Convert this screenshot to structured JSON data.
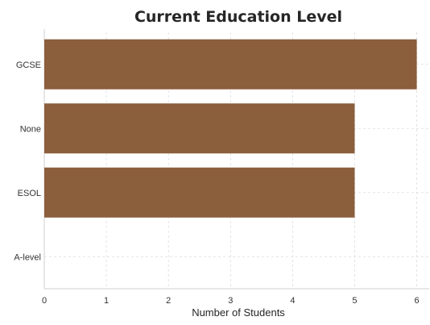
{
  "chart_data": {
    "type": "bar",
    "orientation": "horizontal",
    "title": "Current Education Level",
    "xlabel": "Number of Students",
    "ylabel": "",
    "categories": [
      "GCSE",
      "None",
      "ESOL",
      "A-level"
    ],
    "values": [
      6,
      5,
      5,
      0
    ],
    "xlim": [
      0,
      6.2
    ],
    "xticks": [
      0,
      1,
      2,
      3,
      4,
      5,
      6
    ],
    "grid": true,
    "bar_color": "#8B5E3C"
  }
}
